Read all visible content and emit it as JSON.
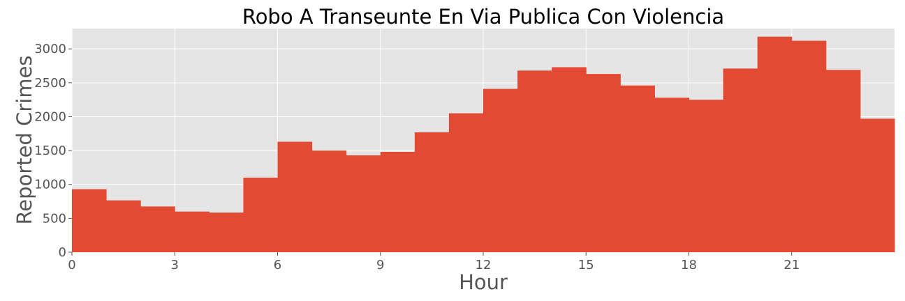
{
  "chart_data": {
    "type": "bar",
    "title": "Robo A Transeunte En Via Publica Con Violencia",
    "xlabel": "Hour",
    "ylabel": "Reported Crimes",
    "x": [
      0,
      1,
      2,
      3,
      4,
      5,
      6,
      7,
      8,
      9,
      10,
      11,
      12,
      13,
      14,
      15,
      16,
      17,
      18,
      19,
      20,
      21,
      22,
      23
    ],
    "values": [
      930,
      765,
      675,
      600,
      585,
      1100,
      1630,
      1500,
      1430,
      1480,
      1770,
      2050,
      2410,
      2680,
      2730,
      2630,
      2460,
      2280,
      2250,
      2710,
      3180,
      3120,
      2690,
      1970
    ],
    "xlim": [
      0,
      24
    ],
    "ylim": [
      0,
      3300
    ],
    "xticks": [
      "0",
      "3",
      "6",
      "9",
      "12",
      "15",
      "18",
      "21"
    ],
    "yticks": [
      "0",
      "500",
      "1000",
      "1500",
      "2000",
      "2500",
      "3000"
    ],
    "grid": true,
    "colors": {
      "bar": "#E24A33",
      "plot_background": "#E5E5E5",
      "grid": "#FFFFFF"
    }
  }
}
